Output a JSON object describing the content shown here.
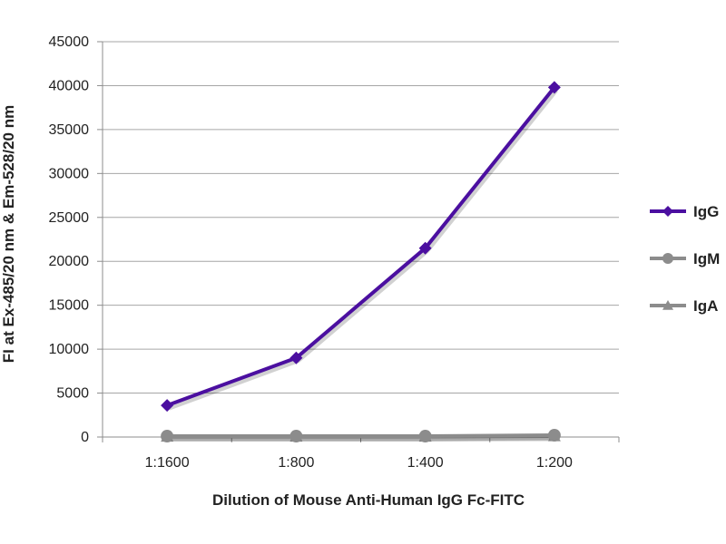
{
  "chart_data": {
    "type": "line",
    "title": "",
    "xlabel": "Dilution of Mouse Anti-Human IgG Fc-FITC",
    "ylabel": "FI at Ex-485/20 nm & Em-528/20 nm",
    "categories": [
      "1:1600",
      "1:800",
      "1:400",
      "1:200"
    ],
    "ylim": [
      0,
      45000
    ],
    "yticks": [
      0,
      5000,
      10000,
      15000,
      20000,
      25000,
      30000,
      35000,
      40000,
      45000
    ],
    "grid": true,
    "legend_position": "right",
    "series": [
      {
        "name": "IgG",
        "values": [
          3600,
          9000,
          21500,
          39800
        ],
        "color": "#4b0fa0",
        "marker": "diamond"
      },
      {
        "name": "IgM",
        "values": [
          100,
          100,
          100,
          200
        ],
        "color": "#8c8c8c",
        "marker": "circle"
      },
      {
        "name": "IgA",
        "values": [
          50,
          50,
          50,
          100
        ],
        "color": "#8c8c8c",
        "marker": "triangle"
      }
    ]
  }
}
